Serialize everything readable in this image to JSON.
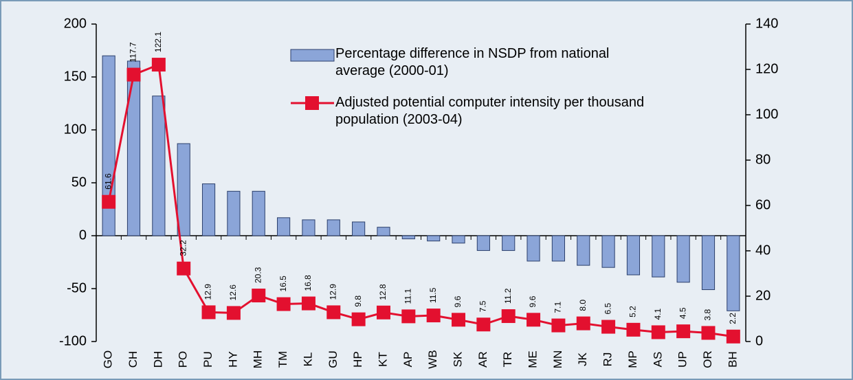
{
  "chart_data": {
    "type": "bar-line",
    "categories": [
      "GO",
      "CH",
      "DH",
      "PO",
      "PU",
      "HY",
      "MH",
      "TM",
      "KL",
      "GU",
      "HP",
      "KT",
      "AP",
      "WB",
      "SK",
      "AR",
      "TR",
      "ME",
      "MN",
      "JK",
      "RJ",
      "MP",
      "AS",
      "UP",
      "OR",
      "BH"
    ],
    "series": [
      {
        "name": "Percentage difference in NSDP from national average (2000-01)",
        "type": "bar",
        "color": "#8ba5d8",
        "values": [
          170,
          165,
          132,
          87,
          49,
          42,
          42,
          17,
          15,
          15,
          13,
          8,
          -3,
          -5,
          -7,
          -14,
          -14,
          -24,
          -24,
          -28,
          -30,
          -37,
          -39,
          -44,
          -51,
          -71
        ]
      },
      {
        "name": "Adjusted potential computer intensity per thousand population (2003-04)",
        "type": "line",
        "axis": "y2",
        "color": "#e3102f",
        "values": [
          61.6,
          117.7,
          122.1,
          32.2,
          12.9,
          12.6,
          20.3,
          16.5,
          16.8,
          12.9,
          9.8,
          12.8,
          11.1,
          11.5,
          9.6,
          7.5,
          11.2,
          9.6,
          7.1,
          8.0,
          6.5,
          5.2,
          4.1,
          4.5,
          3.8,
          2.2
        ],
        "value_labels": [
          "61.6",
          "117.7",
          "122.1",
          "32.2",
          "12.9",
          "12.6",
          "20.3",
          "16.5",
          "16.8",
          "12.9",
          "9.8",
          "12.8",
          "11.1",
          "11.5",
          "9.6",
          "7.5",
          "11.2",
          "9.6",
          "7.1",
          "8.0",
          "6.5",
          "5.2",
          "4.1",
          "4.5",
          "3.8",
          "2.2"
        ]
      }
    ],
    "ylim": [
      -100,
      200
    ],
    "yticks": [
      -100,
      -50,
      0,
      50,
      100,
      150,
      200
    ],
    "y2lim": [
      0,
      140
    ],
    "y2ticks": [
      0,
      20,
      40,
      60,
      80,
      100,
      120,
      140
    ]
  }
}
